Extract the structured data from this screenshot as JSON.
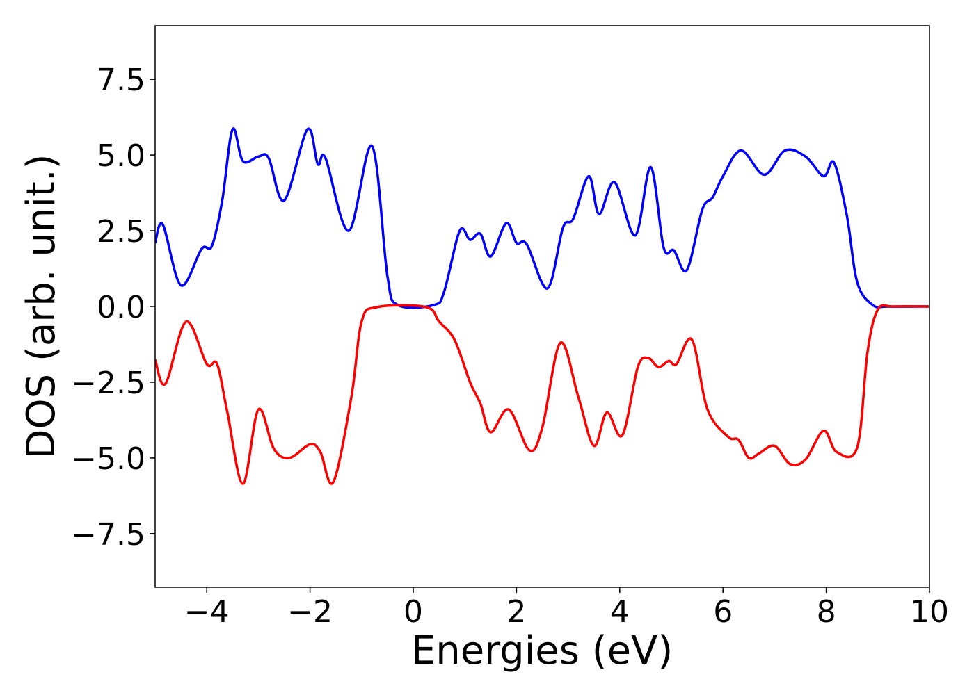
{
  "chart_data": {
    "type": "line",
    "xlabel": "Energies (eV)",
    "ylabel": "DOS (arb. unit.)",
    "xlim": [
      -5,
      10
    ],
    "ylim": [
      -9.27,
      9.27
    ],
    "xticks": [
      {
        "value": -4,
        "label": "−4"
      },
      {
        "value": -2,
        "label": "−2"
      },
      0,
      2,
      4,
      6,
      8,
      10
    ],
    "yticks": [
      {
        "value": -7.5,
        "label": "−7.5"
      },
      {
        "value": -5,
        "label": "−5.0"
      },
      {
        "value": -2.5,
        "label": "−2.5"
      },
      {
        "value": 0,
        "label": "0.0"
      },
      {
        "value": 2.5,
        "label": "2.5"
      },
      {
        "value": 5,
        "label": "5.0"
      },
      {
        "value": 7.5,
        "label": "7.5"
      }
    ],
    "grid": false,
    "series": [
      {
        "color": "#0000ff",
        "x": [
          -5.0,
          -4.85,
          -4.5,
          -4.1,
          -3.9,
          -3.7,
          -3.5,
          -3.3,
          -3.0,
          -2.8,
          -2.5,
          -2.05,
          -1.85,
          -1.7,
          -1.25,
          -0.8,
          -0.5,
          -0.3,
          0.4,
          0.6,
          0.9,
          1.1,
          1.3,
          1.5,
          1.8,
          2.0,
          2.2,
          2.6,
          2.9,
          3.1,
          3.4,
          3.6,
          3.9,
          4.3,
          4.6,
          4.85,
          5.05,
          5.3,
          5.6,
          5.8,
          6.0,
          6.35,
          6.8,
          7.2,
          7.6,
          7.95,
          8.15,
          8.4,
          8.6,
          8.9,
          9.2,
          10.0
        ],
        "values": [
          2.1,
          2.7,
          0.7,
          1.9,
          2.0,
          3.5,
          5.85,
          4.8,
          4.95,
          4.9,
          3.5,
          5.85,
          4.7,
          4.9,
          2.5,
          5.3,
          1.0,
          0.05,
          0.05,
          0.5,
          2.5,
          2.2,
          2.4,
          1.65,
          2.75,
          2.1,
          2.05,
          0.6,
          2.6,
          2.9,
          4.3,
          3.05,
          4.1,
          2.35,
          4.6,
          1.95,
          1.85,
          1.2,
          3.2,
          3.6,
          4.3,
          5.15,
          4.35,
          5.15,
          4.95,
          4.3,
          4.75,
          3.0,
          0.8,
          0.05,
          0,
          0
        ]
      },
      {
        "color": "#ff0000",
        "x": [
          -5.0,
          -4.8,
          -4.4,
          -4.0,
          -3.8,
          -3.6,
          -3.3,
          -3.0,
          -2.7,
          -2.4,
          -2.0,
          -1.8,
          -1.55,
          -1.2,
          -1.0,
          -0.7,
          0.25,
          0.5,
          0.8,
          1.1,
          1.3,
          1.5,
          1.85,
          2.25,
          2.5,
          2.85,
          3.2,
          3.5,
          3.75,
          4.05,
          4.35,
          4.55,
          4.75,
          4.95,
          5.1,
          5.4,
          5.7,
          6.1,
          6.3,
          6.5,
          6.7,
          7.0,
          7.3,
          7.6,
          7.95,
          8.2,
          8.6,
          8.8,
          9.0,
          9.3,
          10.0
        ],
        "values": [
          -1.75,
          -2.55,
          -0.5,
          -1.9,
          -1.9,
          -3.5,
          -5.85,
          -3.4,
          -4.7,
          -5.0,
          -4.55,
          -4.8,
          -5.8,
          -3.0,
          -0.5,
          -0.02,
          -0.02,
          -0.5,
          -1.1,
          -2.5,
          -3.2,
          -4.15,
          -3.4,
          -4.75,
          -4.0,
          -1.2,
          -3.0,
          -4.6,
          -3.5,
          -4.25,
          -2.0,
          -1.7,
          -2.0,
          -1.8,
          -1.9,
          -1.1,
          -3.4,
          -4.3,
          -4.4,
          -5.0,
          -4.85,
          -4.6,
          -5.2,
          -5.05,
          -4.1,
          -4.8,
          -4.65,
          -1.5,
          -0.1,
          0,
          0
        ]
      }
    ]
  }
}
